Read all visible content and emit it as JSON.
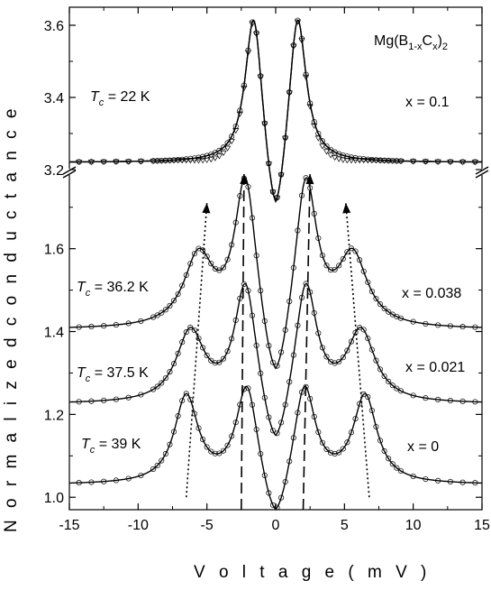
{
  "chart_data": {
    "type": "line",
    "xlabel": "V o l t a g e ( m V )",
    "ylabel": "N o r m a l i z e d   c o n d u c t a n c e",
    "xlim": [
      -15,
      15
    ],
    "x_ticks": [
      "-15",
      "-10",
      "-5",
      "0",
      "5",
      "10",
      "15"
    ],
    "upper_panel": {
      "ylim": [
        3.2,
        3.65
      ],
      "y_ticks": [
        "3.2",
        "3.4",
        "3.6"
      ],
      "formula": {
        "base": "Mg(B",
        "sub1": "1-x",
        "mid": "C",
        "sub2": "x",
        "end": ")",
        "sub3": "2"
      },
      "x_label": "x = 0.1",
      "tc_label": {
        "t": "T",
        "c": "c",
        "value": " = 22 K"
      },
      "series": [
        {
          "base": 3.22,
          "peaks": [
            {
              "center": 1.6,
              "amp": 0.4,
              "width": 0.75
            }
          ]
        }
      ]
    },
    "lower_panel": {
      "ylim": [
        0.97,
        1.78
      ],
      "y_ticks": [
        "1.0",
        "1.2",
        "1.4",
        "1.6"
      ],
      "series": [
        {
          "x_label": "x = 0.038",
          "tc_label": {
            "t": "T",
            "c": "c",
            "value": " = 36.2 K"
          },
          "base": 1.405,
          "peaks": [
            {
              "center": 2.2,
              "amp": 0.35,
              "width": 0.95
            },
            {
              "center": 5.6,
              "amp": 0.17,
              "width": 1.3
            }
          ]
        },
        {
          "x_label": "x = 0.021",
          "tc_label": {
            "t": "T",
            "c": "c",
            "value": " = 37.5 K"
          },
          "base": 1.225,
          "peaks": [
            {
              "center": 2.2,
              "amp": 0.28,
              "width": 0.95
            },
            {
              "center": 6.2,
              "amp": 0.17,
              "width": 1.25
            }
          ]
        },
        {
          "x_label": "x = 0",
          "tc_label": {
            "t": "T",
            "c": "c",
            "value": " = 39 K"
          },
          "base": 1.03,
          "peaks": [
            {
              "center": 2.1,
              "amp": 0.23,
              "width": 0.95
            },
            {
              "center": 6.5,
              "amp": 0.21,
              "width": 1.05
            }
          ]
        }
      ]
    },
    "arrows": {
      "dashed": [
        {
          "x1": -2.5,
          "y1": 0.97,
          "x2": -2.3,
          "y2": 1.78
        },
        {
          "x1": 2.0,
          "y1": 0.97,
          "x2": 2.5,
          "y2": 1.78
        }
      ],
      "dotted": [
        {
          "x1": -6.5,
          "y1": 1.0,
          "x2": -5.0,
          "y2": 1.71
        },
        {
          "x1": 6.8,
          "y1": 1.0,
          "x2": 5.1,
          "y2": 1.71
        }
      ]
    }
  }
}
